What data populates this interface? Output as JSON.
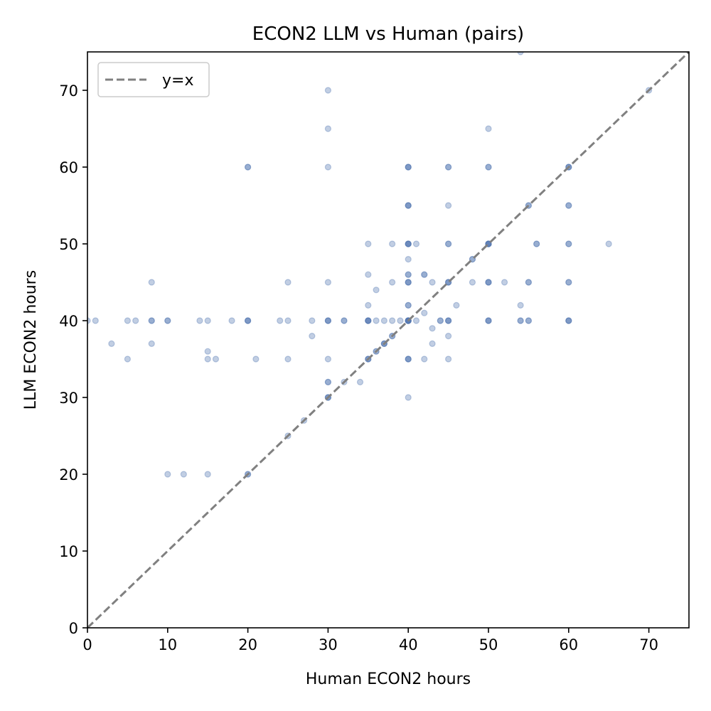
{
  "chart_data": {
    "type": "scatter",
    "title": "ECON2 LLM vs Human (pairs)",
    "xlabel": "Human ECON2 hours",
    "ylabel": "LLM ECON2 hours",
    "xlim": [
      0,
      75
    ],
    "ylim": [
      0,
      75
    ],
    "xticks": [
      0,
      10,
      20,
      30,
      40,
      50,
      60,
      70
    ],
    "yticks": [
      0,
      10,
      20,
      30,
      40,
      50,
      60,
      70
    ],
    "grid": false,
    "legend": {
      "placement": "top-left",
      "entries": [
        "y=x"
      ]
    },
    "reference_line": {
      "label": "y=x",
      "style": "dashed",
      "color": "#808080"
    },
    "point_color": "#4c72b0",
    "point_alpha": 0.35,
    "series": [
      {
        "points": [
          [
            0,
            40
          ],
          [
            1,
            40
          ],
          [
            3,
            37
          ],
          [
            5,
            40
          ],
          [
            5,
            35
          ],
          [
            6,
            40
          ],
          [
            8,
            45
          ],
          [
            8,
            40
          ],
          [
            8,
            40
          ],
          [
            8,
            37
          ],
          [
            10,
            40
          ],
          [
            10,
            40
          ],
          [
            10,
            20
          ],
          [
            12,
            20
          ],
          [
            14,
            40
          ],
          [
            15,
            40
          ],
          [
            15,
            36
          ],
          [
            15,
            35
          ],
          [
            15,
            20
          ],
          [
            16,
            35
          ],
          [
            18,
            40
          ],
          [
            20,
            60
          ],
          [
            20,
            60
          ],
          [
            20,
            40
          ],
          [
            20,
            40
          ],
          [
            20,
            40
          ],
          [
            20,
            20
          ],
          [
            20,
            20
          ],
          [
            21,
            35
          ],
          [
            24,
            40
          ],
          [
            25,
            45
          ],
          [
            25,
            40
          ],
          [
            25,
            35
          ],
          [
            25,
            25
          ],
          [
            27,
            27
          ],
          [
            28,
            40
          ],
          [
            28,
            38
          ],
          [
            30,
            70
          ],
          [
            30,
            65
          ],
          [
            30,
            60
          ],
          [
            30,
            45
          ],
          [
            30,
            40
          ],
          [
            30,
            40
          ],
          [
            30,
            40
          ],
          [
            30,
            35
          ],
          [
            30,
            32
          ],
          [
            30,
            32
          ],
          [
            30,
            30
          ],
          [
            30,
            30
          ],
          [
            30,
            30
          ],
          [
            32,
            40
          ],
          [
            32,
            40
          ],
          [
            32,
            32
          ],
          [
            34,
            32
          ],
          [
            35,
            50
          ],
          [
            35,
            46
          ],
          [
            35,
            42
          ],
          [
            35,
            40
          ],
          [
            35,
            40
          ],
          [
            35,
            40
          ],
          [
            35,
            40
          ],
          [
            35,
            35
          ],
          [
            35,
            35
          ],
          [
            35,
            35
          ],
          [
            36,
            44
          ],
          [
            36,
            40
          ],
          [
            36,
            36
          ],
          [
            36,
            36
          ],
          [
            37,
            40
          ],
          [
            37,
            37
          ],
          [
            37,
            37
          ],
          [
            37,
            37
          ],
          [
            38,
            50
          ],
          [
            38,
            45
          ],
          [
            38,
            40
          ],
          [
            38,
            38
          ],
          [
            38,
            38
          ],
          [
            39,
            40
          ],
          [
            40,
            60
          ],
          [
            40,
            60
          ],
          [
            40,
            60
          ],
          [
            40,
            55
          ],
          [
            40,
            55
          ],
          [
            40,
            55
          ],
          [
            40,
            50
          ],
          [
            40,
            50
          ],
          [
            40,
            50
          ],
          [
            40,
            50
          ],
          [
            40,
            48
          ],
          [
            40,
            46
          ],
          [
            40,
            46
          ],
          [
            40,
            45
          ],
          [
            40,
            45
          ],
          [
            40,
            45
          ],
          [
            40,
            42
          ],
          [
            40,
            42
          ],
          [
            40,
            40
          ],
          [
            40,
            40
          ],
          [
            40,
            40
          ],
          [
            40,
            40
          ],
          [
            40,
            40
          ],
          [
            40,
            40
          ],
          [
            40,
            35
          ],
          [
            40,
            35
          ],
          [
            40,
            35
          ],
          [
            40,
            30
          ],
          [
            41,
            50
          ],
          [
            41,
            40
          ],
          [
            42,
            46
          ],
          [
            42,
            46
          ],
          [
            42,
            41
          ],
          [
            42,
            35
          ],
          [
            43,
            45
          ],
          [
            43,
            39
          ],
          [
            43,
            37
          ],
          [
            44,
            40
          ],
          [
            44,
            40
          ],
          [
            45,
            60
          ],
          [
            45,
            60
          ],
          [
            45,
            55
          ],
          [
            45,
            50
          ],
          [
            45,
            50
          ],
          [
            45,
            45
          ],
          [
            45,
            45
          ],
          [
            45,
            45
          ],
          [
            45,
            40
          ],
          [
            45,
            40
          ],
          [
            45,
            40
          ],
          [
            45,
            38
          ],
          [
            45,
            35
          ],
          [
            46,
            42
          ],
          [
            48,
            48
          ],
          [
            48,
            48
          ],
          [
            48,
            45
          ],
          [
            50,
            65
          ],
          [
            50,
            60
          ],
          [
            50,
            60
          ],
          [
            50,
            50
          ],
          [
            50,
            50
          ],
          [
            50,
            50
          ],
          [
            50,
            50
          ],
          [
            50,
            50
          ],
          [
            50,
            45
          ],
          [
            50,
            45
          ],
          [
            50,
            45
          ],
          [
            50,
            40
          ],
          [
            50,
            40
          ],
          [
            50,
            40
          ],
          [
            52,
            45
          ],
          [
            54,
            75
          ],
          [
            54,
            42
          ],
          [
            54,
            40
          ],
          [
            54,
            40
          ],
          [
            55,
            55
          ],
          [
            55,
            55
          ],
          [
            55,
            45
          ],
          [
            55,
            45
          ],
          [
            55,
            40
          ],
          [
            55,
            40
          ],
          [
            56,
            50
          ],
          [
            56,
            50
          ],
          [
            60,
            60
          ],
          [
            60,
            60
          ],
          [
            60,
            60
          ],
          [
            60,
            55
          ],
          [
            60,
            55
          ],
          [
            60,
            50
          ],
          [
            60,
            50
          ],
          [
            60,
            45
          ],
          [
            60,
            45
          ],
          [
            60,
            40
          ],
          [
            60,
            40
          ],
          [
            60,
            40
          ],
          [
            65,
            50
          ],
          [
            70,
            70
          ]
        ]
      }
    ]
  }
}
